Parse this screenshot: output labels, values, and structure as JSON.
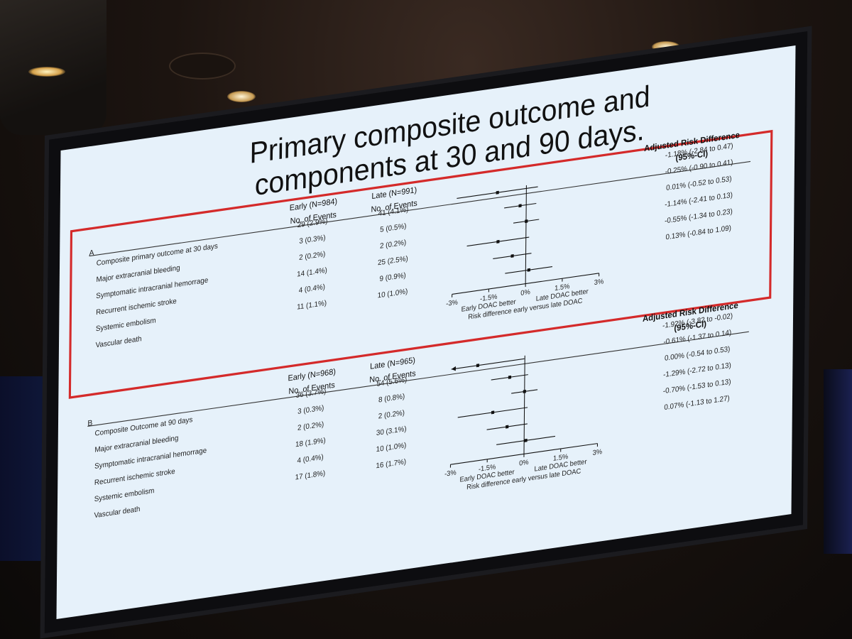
{
  "slide": {
    "title_line1": "Primary composite outcome and",
    "title_line2": "components at 30 and 90 days."
  },
  "panel_a": {
    "label": "A",
    "early_header": "Early (N=984)",
    "late_header": "Late (N=991)",
    "events_header": "No. of Events",
    "ard_header": "Adjusted Risk Difference",
    "ci_header": "(95%-CI)",
    "rows": [
      {
        "label": "Composite primary outcome at 30 days",
        "early": "29 (2.9%)",
        "late": "41 (4.1%)",
        "ci": "-1.18% (-2.84 to 0.47)"
      },
      {
        "label": "Major extracranial bleeding",
        "early": "3 (0.3%)",
        "late": "5 (0.5%)",
        "ci": "-0.25% (-0.90 to 0.41)"
      },
      {
        "label": "Symptomatic intracranial hemorrage",
        "early": "2 (0.2%)",
        "late": "2 (0.2%)",
        "ci": "0.01% (-0.52 to 0.53)"
      },
      {
        "label": "Recurrent ischemic stroke",
        "early": "14 (1.4%)",
        "late": "25 (2.5%)",
        "ci": "-1.14% (-2.41 to 0.13)"
      },
      {
        "label": "Systemic embolism",
        "early": "4 (0.4%)",
        "late": "9 (0.9%)",
        "ci": "-0.55% (-1.34 to 0.23)"
      },
      {
        "label": "Vascular death",
        "early": "11 (1.1%)",
        "late": "10 (1.0%)",
        "ci": "0.13% (-0.84 to 1.09)"
      }
    ],
    "axis_left_label": "Early DOAC better",
    "axis_right_label": "Late DOAC better",
    "axis_title": "Risk difference early versus late DOAC"
  },
  "panel_b": {
    "label": "B",
    "early_header": "Early (N=968)",
    "late_header": "Late (N=965)",
    "events_header": "No. of Events",
    "ard_header": "Adjusted Risk Difference",
    "ci_header": "(95%-CI)",
    "rows": [
      {
        "label": "Composite Outcome at 90 days",
        "early": "36 (3.7%)",
        "late": "54 (5.6%)",
        "ci": "-1.92% (-3.82 to -0.02)"
      },
      {
        "label": "Major extracranial bleeding",
        "early": "3 (0.3%)",
        "late": "8 (0.8%)",
        "ci": "-0.61% (-1.37 to 0.14)"
      },
      {
        "label": "Symptomatic intracranial hemorrage",
        "early": "2 (0.2%)",
        "late": "2 (0.2%)",
        "ci": "0.00% (-0.54 to 0.53)"
      },
      {
        "label": "Recurrent ischemic stroke",
        "early": "18 (1.9%)",
        "late": "30 (3.1%)",
        "ci": "-1.29% (-2.72 to 0.13)"
      },
      {
        "label": "Systemic embolism",
        "early": "4 (0.4%)",
        "late": "10 (1.0%)",
        "ci": "-0.70% (-1.53 to 0.13)"
      },
      {
        "label": "Vascular death",
        "early": "17 (1.8%)",
        "late": "16 (1.7%)",
        "ci": "0.07% (-1.13 to 1.27)"
      }
    ],
    "axis_left_label": "Early DOAC better",
    "axis_right_label": "Late DOAC better",
    "axis_title": "Risk difference early versus late DOAC"
  },
  "chart_data": [
    {
      "type": "forest",
      "title": "A",
      "xlabel": "Risk difference early versus late DOAC",
      "xlim": [
        -3,
        3
      ],
      "ticks": [
        -3,
        -1.5,
        0,
        1.5,
        3
      ],
      "tick_labels": [
        "-3%",
        "-1.5%",
        "0%",
        "1.5%",
        "3%"
      ],
      "categories": [
        "Composite primary outcome at 30 days",
        "Major extracranial bleeding",
        "Symptomatic intracranial hemorrage",
        "Recurrent ischemic stroke",
        "Systemic embolism",
        "Vascular death"
      ],
      "estimate": [
        -1.18,
        -0.25,
        0.01,
        -1.14,
        -0.55,
        0.13
      ],
      "lower": [
        -2.84,
        -0.9,
        -0.52,
        -2.41,
        -1.34,
        -0.84
      ],
      "upper": [
        0.47,
        0.41,
        0.53,
        0.13,
        0.23,
        1.09
      ]
    },
    {
      "type": "forest",
      "title": "B",
      "xlabel": "Risk difference early versus late DOAC",
      "xlim": [
        -3,
        3
      ],
      "ticks": [
        -3,
        -1.5,
        0,
        1.5,
        3
      ],
      "tick_labels": [
        "-3%",
        "-1.5%",
        "0%",
        "1.5%",
        "3%"
      ],
      "categories": [
        "Composite Outcome at 90 days",
        "Major extracranial bleeding",
        "Symptomatic intracranial hemorrage",
        "Recurrent ischemic stroke",
        "Systemic embolism",
        "Vascular death"
      ],
      "estimate": [
        -1.92,
        -0.61,
        0.0,
        -1.29,
        -0.7,
        0.07
      ],
      "lower": [
        -3.82,
        -1.37,
        -0.54,
        -2.72,
        -1.53,
        -1.13
      ],
      "upper": [
        -0.02,
        0.14,
        0.53,
        0.13,
        0.13,
        1.27
      ]
    }
  ]
}
